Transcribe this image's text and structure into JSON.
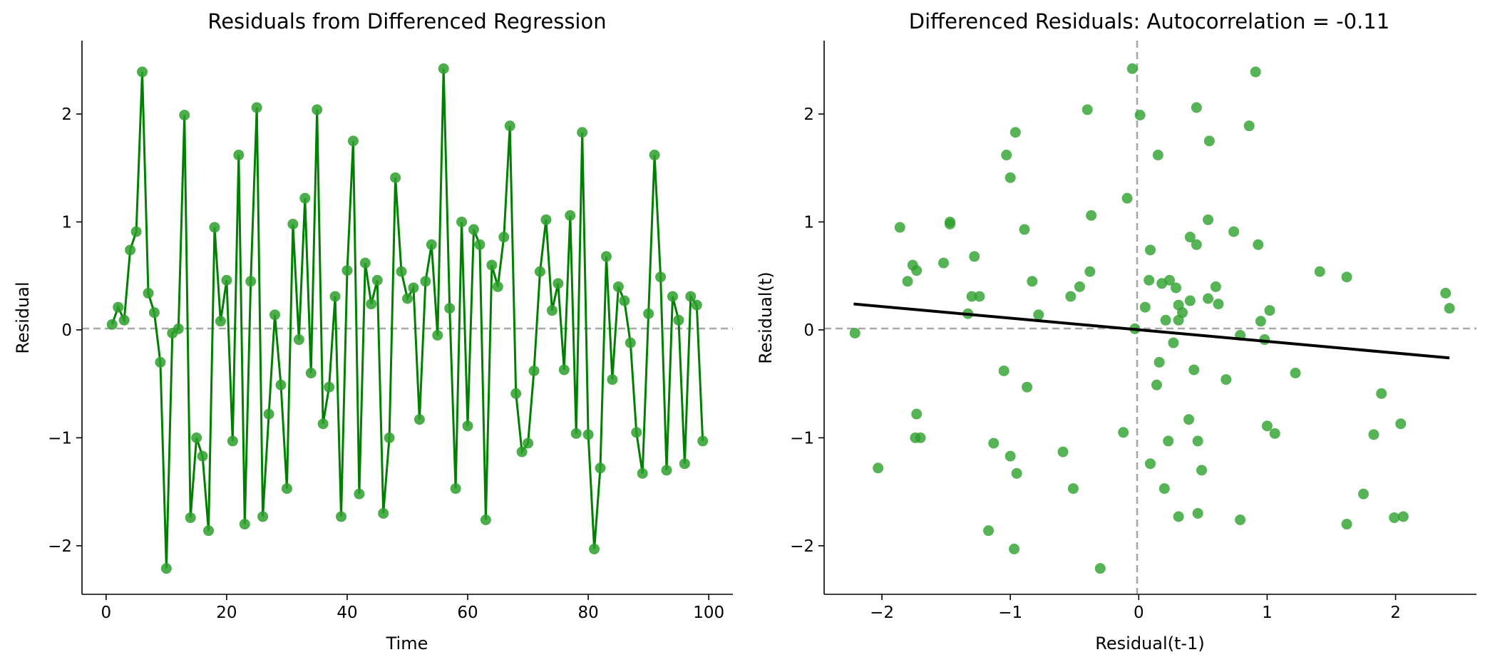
{
  "colors": {
    "points": "#2ca02c",
    "line": "#008000",
    "fit": "#000000",
    "reference": "#a8a8a8"
  },
  "chart_data": [
    {
      "type": "line",
      "title": "Residuals from Differenced Regression",
      "xlabel": "Time",
      "ylabel": "Residual",
      "xlim": [
        -4,
        104
      ],
      "ylim": [
        -2.45,
        2.68
      ],
      "xticks": [
        0,
        20,
        40,
        60,
        80,
        100
      ],
      "yticks": [
        -2,
        -1,
        0,
        1,
        2
      ],
      "xtick_labels": [
        "0",
        "20",
        "40",
        "60",
        "80",
        "100"
      ],
      "ytick_labels": [
        "−2",
        "−1",
        "0",
        "1",
        "2"
      ],
      "reference_y": 0,
      "grid": false,
      "markers": true,
      "series": [
        {
          "x": [
            1,
            2,
            3,
            4,
            5,
            6,
            7,
            8,
            9,
            10,
            11,
            12,
            13,
            14,
            15,
            16,
            17,
            18,
            19,
            20,
            21,
            22,
            23,
            24,
            25,
            26,
            27,
            28,
            29,
            30,
            31,
            32,
            33,
            34,
            35,
            36,
            37,
            38,
            39,
            40,
            41,
            42,
            43,
            44,
            45,
            46,
            47,
            48,
            49,
            50,
            51,
            52,
            53,
            54,
            55,
            56,
            57,
            58,
            59,
            60,
            61,
            62,
            63,
            64,
            65,
            66,
            67,
            68,
            69,
            70,
            71,
            72,
            73,
            74,
            75,
            76,
            77,
            78,
            79,
            80,
            81,
            82,
            83,
            84,
            85,
            86,
            87,
            88,
            89,
            90,
            91,
            92,
            93,
            94,
            95,
            96,
            97,
            98,
            99
          ],
          "values": [
            0.05,
            0.21,
            0.09,
            0.74,
            0.91,
            2.39,
            0.34,
            0.16,
            -0.3,
            -2.21,
            -0.03,
            0.01,
            1.99,
            -1.74,
            -1.0,
            -1.17,
            -1.86,
            0.95,
            0.08,
            0.46,
            -1.03,
            1.62,
            -1.8,
            0.45,
            2.06,
            -1.73,
            -0.78,
            0.14,
            -0.51,
            -1.47,
            0.98,
            -0.09,
            1.22,
            -0.4,
            2.04,
            -0.87,
            -0.53,
            0.31,
            -1.73,
            0.55,
            1.75,
            -1.52,
            0.62,
            0.24,
            0.46,
            -1.7,
            -1.0,
            1.41,
            0.54,
            0.29,
            0.39,
            -0.83,
            0.45,
            0.79,
            -0.05,
            2.42,
            0.2,
            -1.47,
            1.0,
            -0.89,
            0.93,
            0.79,
            -1.76,
            0.6,
            0.4,
            0.86,
            1.89,
            -0.59,
            -1.13,
            -1.05,
            -0.38,
            0.54,
            1.02,
            0.18,
            0.43,
            -0.37,
            1.06,
            -0.96,
            1.83,
            -0.97,
            -2.03,
            -1.28,
            0.68,
            -0.46,
            0.4,
            0.27,
            -0.12,
            -0.95,
            -1.33,
            0.15,
            1.62,
            0.49,
            -1.3,
            0.31,
            0.09,
            -1.24,
            0.31,
            0.23,
            -1.03
          ]
        }
      ]
    },
    {
      "type": "scatter",
      "title": "Differenced Residuals: Autocorrelation = -0.11",
      "xlabel": "Residual(t-1)",
      "ylabel": "Residual(t)",
      "xlim": [
        -2.45,
        2.63
      ],
      "ylim": [
        -2.45,
        2.68
      ],
      "xticks": [
        -2,
        -1,
        0,
        1,
        2
      ],
      "yticks": [
        -2,
        -1,
        0,
        1,
        2
      ],
      "xtick_labels": [
        "−2",
        "−1",
        "0",
        "1",
        "2"
      ],
      "ytick_labels": [
        "−2",
        "−1",
        "0",
        "1",
        "2"
      ],
      "reference_x": 0,
      "reference_y": 0,
      "grid": false,
      "fit_line": {
        "x": [
          -2.22,
          2.42
        ],
        "y": [
          0.24,
          -0.26
        ]
      }
    }
  ]
}
